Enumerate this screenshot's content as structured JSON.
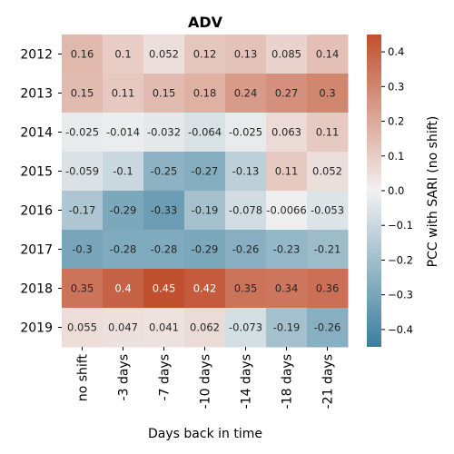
{
  "chart_data": {
    "type": "heatmap",
    "title": "ADV",
    "xlabel": "Days back in time",
    "colorbar_label": "PCC with SARI (no shift)",
    "x_categories": [
      "no shift",
      "-3 days",
      "-7 days",
      "-10 days",
      "-14 days",
      "-18 days",
      "-21 days"
    ],
    "y_categories": [
      "2012",
      "2013",
      "2014",
      "2015",
      "2016",
      "2017",
      "2018",
      "2019"
    ],
    "values": [
      [
        0.16,
        0.1,
        0.052,
        0.12,
        0.13,
        0.085,
        0.14
      ],
      [
        0.15,
        0.11,
        0.15,
        0.18,
        0.24,
        0.27,
        0.3
      ],
      [
        -0.025,
        -0.014,
        -0.032,
        -0.064,
        -0.025,
        0.063,
        0.11
      ],
      [
        -0.059,
        -0.1,
        -0.25,
        -0.27,
        -0.13,
        0.11,
        0.052
      ],
      [
        -0.17,
        -0.29,
        -0.33,
        -0.19,
        -0.078,
        -0.0066,
        -0.053
      ],
      [
        -0.3,
        -0.28,
        -0.28,
        -0.29,
        -0.26,
        -0.23,
        -0.21
      ],
      [
        0.35,
        0.4,
        0.45,
        0.42,
        0.35,
        0.34,
        0.36
      ],
      [
        0.055,
        0.047,
        0.041,
        0.062,
        -0.073,
        -0.19,
        -0.26
      ]
    ],
    "cell_labels": [
      [
        "0.16",
        "0.1",
        "0.052",
        "0.12",
        "0.13",
        "0.085",
        "0.14"
      ],
      [
        "0.15",
        "0.11",
        "0.15",
        "0.18",
        "0.24",
        "0.27",
        "0.3"
      ],
      [
        "-0.025",
        "-0.014",
        "-0.032",
        "-0.064",
        "-0.025",
        "0.063",
        "0.11"
      ],
      [
        "-0.059",
        "-0.1",
        "-0.25",
        "-0.27",
        "-0.13",
        "0.11",
        "0.052"
      ],
      [
        "-0.17",
        "-0.29",
        "-0.33",
        "-0.19",
        "-0.078",
        "-0.0066",
        "-0.053"
      ],
      [
        "-0.3",
        "-0.28",
        "-0.28",
        "-0.29",
        "-0.26",
        "-0.23",
        "-0.21"
      ],
      [
        "0.35",
        "0.4",
        "0.45",
        "0.42",
        "0.35",
        "0.34",
        "0.36"
      ],
      [
        "0.055",
        "0.047",
        "0.041",
        "0.062",
        "-0.073",
        "-0.19",
        "-0.26"
      ]
    ],
    "color_range": [
      -0.45,
      0.45
    ],
    "colorbar_ticks": [
      0.4,
      0.3,
      0.2,
      0.1,
      0.0,
      -0.1,
      -0.2,
      -0.3,
      -0.4
    ],
    "colorbar_tick_labels": [
      "0.4",
      "0.3",
      "0.2",
      "0.1",
      "0.0",
      "−0.1",
      "−0.2",
      "−0.3",
      "−0.4"
    ],
    "colormap": {
      "negative": "#3b7f9e",
      "mid": "#f2f1f1",
      "positive": "#c1502f"
    },
    "legend_position": "right"
  }
}
